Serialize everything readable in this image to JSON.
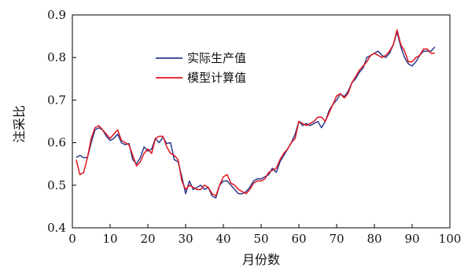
{
  "chart_data": {
    "type": "line",
    "title": "",
    "xlabel": "月份数",
    "ylabel": "注采比",
    "xlim": [
      0,
      100
    ],
    "ylim": [
      0.4,
      0.9
    ],
    "x_ticks": [
      "0",
      "10",
      "20",
      "30",
      "40",
      "50",
      "60",
      "70",
      "80",
      "90",
      "100"
    ],
    "y_ticks": [
      "0.4",
      "0.5",
      "0.6",
      "0.7",
      "0.8",
      "0.9"
    ],
    "grid": false,
    "legend_position": "upper-left inside plot",
    "series": [
      {
        "name": "实际生产值",
        "color": "#2b3a8f",
        "x": [
          1,
          2,
          3,
          4,
          5,
          6,
          7,
          8,
          9,
          10,
          11,
          12,
          13,
          14,
          15,
          16,
          17,
          18,
          19,
          20,
          21,
          22,
          23,
          24,
          25,
          26,
          27,
          28,
          29,
          30,
          31,
          32,
          33,
          34,
          35,
          36,
          37,
          38,
          39,
          40,
          41,
          42,
          43,
          44,
          45,
          46,
          47,
          48,
          49,
          50,
          51,
          52,
          53,
          54,
          55,
          56,
          57,
          58,
          59,
          60,
          61,
          62,
          63,
          64,
          65,
          66,
          67,
          68,
          69,
          70,
          71,
          72,
          73,
          74,
          75,
          76,
          77,
          78,
          79,
          80,
          81,
          82,
          83,
          84,
          85,
          86,
          87,
          88,
          89,
          90,
          91,
          92,
          93,
          94,
          95,
          96
        ],
        "y": [
          0.565,
          0.57,
          0.565,
          0.565,
          0.6,
          0.63,
          0.635,
          0.63,
          0.615,
          0.605,
          0.61,
          0.62,
          0.6,
          0.595,
          0.598,
          0.56,
          0.55,
          0.565,
          0.59,
          0.58,
          0.585,
          0.61,
          0.6,
          0.613,
          0.598,
          0.6,
          0.56,
          0.555,
          0.52,
          0.48,
          0.51,
          0.49,
          0.495,
          0.5,
          0.49,
          0.495,
          0.475,
          0.47,
          0.5,
          0.51,
          0.51,
          0.5,
          0.49,
          0.48,
          0.48,
          0.485,
          0.495,
          0.51,
          0.515,
          0.515,
          0.52,
          0.525,
          0.54,
          0.53,
          0.555,
          0.57,
          0.585,
          0.6,
          0.62,
          0.65,
          0.64,
          0.645,
          0.64,
          0.645,
          0.65,
          0.635,
          0.65,
          0.675,
          0.69,
          0.7,
          0.715,
          0.708,
          0.72,
          0.74,
          0.75,
          0.765,
          0.775,
          0.8,
          0.805,
          0.81,
          0.815,
          0.805,
          0.8,
          0.81,
          0.83,
          0.86,
          0.825,
          0.8,
          0.785,
          0.78,
          0.79,
          0.805,
          0.815,
          0.815,
          0.815,
          0.825
        ]
      },
      {
        "name": "模型计算值",
        "color": "#e0141e",
        "x": [
          1,
          2,
          3,
          4,
          5,
          6,
          7,
          8,
          9,
          10,
          11,
          12,
          13,
          14,
          15,
          16,
          17,
          18,
          19,
          20,
          21,
          22,
          23,
          24,
          25,
          26,
          27,
          28,
          29,
          30,
          31,
          32,
          33,
          34,
          35,
          36,
          37,
          38,
          39,
          40,
          41,
          42,
          43,
          44,
          45,
          46,
          47,
          48,
          49,
          50,
          51,
          52,
          53,
          54,
          55,
          56,
          57,
          58,
          59,
          60,
          61,
          62,
          63,
          64,
          65,
          66,
          67,
          68,
          69,
          70,
          71,
          72,
          73,
          74,
          75,
          76,
          77,
          78,
          79,
          80,
          81,
          82,
          83,
          84,
          85,
          86,
          87,
          88,
          89,
          90,
          91,
          92,
          93,
          94,
          95,
          96
        ],
        "y": [
          0.56,
          0.525,
          0.53,
          0.565,
          0.61,
          0.635,
          0.64,
          0.63,
          0.62,
          0.61,
          0.62,
          0.63,
          0.605,
          0.6,
          0.595,
          0.57,
          0.545,
          0.555,
          0.575,
          0.585,
          0.575,
          0.61,
          0.615,
          0.615,
          0.59,
          0.575,
          0.57,
          0.56,
          0.51,
          0.49,
          0.5,
          0.495,
          0.49,
          0.49,
          0.5,
          0.495,
          0.48,
          0.475,
          0.5,
          0.52,
          0.525,
          0.505,
          0.5,
          0.49,
          0.485,
          0.48,
          0.49,
          0.505,
          0.51,
          0.51,
          0.515,
          0.53,
          0.535,
          0.54,
          0.56,
          0.575,
          0.585,
          0.6,
          0.61,
          0.65,
          0.645,
          0.64,
          0.645,
          0.65,
          0.66,
          0.66,
          0.65,
          0.67,
          0.69,
          0.71,
          0.715,
          0.705,
          0.715,
          0.74,
          0.755,
          0.77,
          0.78,
          0.79,
          0.805,
          0.81,
          0.805,
          0.8,
          0.805,
          0.815,
          0.83,
          0.865,
          0.83,
          0.815,
          0.79,
          0.79,
          0.8,
          0.805,
          0.82,
          0.82,
          0.81,
          0.81
        ]
      }
    ]
  }
}
